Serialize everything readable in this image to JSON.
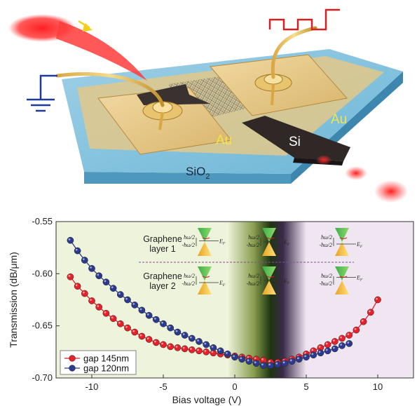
{
  "device": {
    "labels": {
      "au_left": "Au",
      "au_right": "Au",
      "si": "Si",
      "sio2_base": "SiO",
      "sio2_sub": "2"
    }
  },
  "chart_data": {
    "type": "line",
    "xlabel": "Bias voltage (V)",
    "ylabel": "Transmission (dB/μm)",
    "xlim": [
      -12.5,
      12.5
    ],
    "ylim": [
      -0.7,
      -0.55
    ],
    "xticks": [
      -10,
      -5,
      0,
      5,
      10
    ],
    "yticks": [
      -0.7,
      -0.65,
      -0.6,
      -0.55
    ],
    "xtick_labels": [
      "-10",
      "-5",
      "0",
      "5",
      "10"
    ],
    "ytick_labels": [
      "-0.70",
      "-0.65",
      "-0.60",
      "-0.55"
    ],
    "legend_position": "bottom-left",
    "background_regions": [
      {
        "range": [
          -12.5,
          -0.5
        ],
        "color": "#eef3dc"
      },
      {
        "range": [
          -0.5,
          2.5
        ],
        "color": "gradient-light-to-dark-green"
      },
      {
        "range": [
          2.5,
          5
        ],
        "color": "gradient-dark-to-lavender"
      },
      {
        "range": [
          5,
          12.5
        ],
        "color": "#efe6f1"
      }
    ],
    "layer_labels": [
      "Graphene\nlayer 1",
      "Graphene\nlayer 2"
    ],
    "inset_labels": {
      "upper": "ħω/2",
      "lower": "-ħω/2",
      "fermi": "E",
      "fermi_sub": "F"
    },
    "series": [
      {
        "name": "gap 145nm",
        "color": "#e8202a",
        "x": [
          -11.5,
          -11,
          -10.5,
          -10,
          -9.5,
          -9,
          -8.5,
          -8,
          -7.5,
          -7,
          -6.5,
          -6,
          -5.5,
          -5,
          -4.5,
          -4,
          -3.5,
          -3,
          -2.5,
          -2,
          -1.5,
          -1,
          -0.5,
          0,
          0.5,
          1,
          1.5,
          2,
          2.5,
          3,
          3.5,
          4,
          4.5,
          5,
          5.5,
          6,
          6.5,
          7,
          7.5,
          8,
          8.5,
          9,
          9.5,
          10
        ],
        "y": [
          -0.603,
          -0.612,
          -0.619,
          -0.626,
          -0.632,
          -0.638,
          -0.643,
          -0.648,
          -0.652,
          -0.656,
          -0.66,
          -0.663,
          -0.666,
          -0.668,
          -0.67,
          -0.671,
          -0.672,
          -0.673,
          -0.674,
          -0.675,
          -0.676,
          -0.677,
          -0.678,
          -0.679,
          -0.68,
          -0.681,
          -0.682,
          -0.683,
          -0.685,
          -0.685,
          -0.684,
          -0.682,
          -0.68,
          -0.677,
          -0.674,
          -0.671,
          -0.668,
          -0.665,
          -0.662,
          -0.659,
          -0.654,
          -0.646,
          -0.637,
          -0.625
        ]
      },
      {
        "name": "gap 120nm",
        "color": "#2b3a8f",
        "x": [
          -11.5,
          -11,
          -10.5,
          -10,
          -9.5,
          -9,
          -8.5,
          -8,
          -7.5,
          -7,
          -6.5,
          -6,
          -5.5,
          -5,
          -4.5,
          -4,
          -3.5,
          -3,
          -2.5,
          -2,
          -1.5,
          -1,
          -0.5,
          0,
          0.5,
          1,
          1.5,
          2,
          2.5,
          3,
          3.5,
          4,
          4.5,
          5,
          5.5,
          6,
          6.5,
          7,
          7.5,
          8
        ],
        "y": [
          -0.568,
          -0.578,
          -0.587,
          -0.595,
          -0.602,
          -0.608,
          -0.614,
          -0.62,
          -0.625,
          -0.63,
          -0.635,
          -0.64,
          -0.644,
          -0.648,
          -0.652,
          -0.656,
          -0.659,
          -0.662,
          -0.665,
          -0.668,
          -0.671,
          -0.674,
          -0.677,
          -0.68,
          -0.682,
          -0.684,
          -0.686,
          -0.688,
          -0.688,
          -0.687,
          -0.686,
          -0.684,
          -0.682,
          -0.68,
          -0.678,
          -0.676,
          -0.674,
          -0.672,
          -0.669,
          -0.667
        ]
      }
    ]
  }
}
